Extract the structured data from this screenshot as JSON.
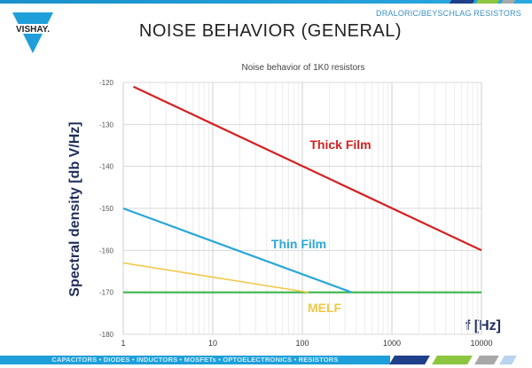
{
  "header": {
    "brand": "VISHAY.",
    "division": "DRALORIC/BEYSCHLAG RESISTORS",
    "title": "NOISE BEHAVIOR (GENERAL)"
  },
  "footer": {
    "tagline": "CAPACITORS • DIODES • INDUCTORS • MOSFETs • OPTOELECTRONICS • RESISTORS"
  },
  "colors": {
    "brand_blue": "#1f9fd9",
    "accent_navy": "#1e3f8a",
    "accent_green": "#8cc63f",
    "accent_gray": "#a8a8a8",
    "accent_light": "#b8d4ee"
  },
  "chart_data": {
    "type": "line",
    "title": "Noise behavior of 1K0 resistors",
    "xlabel": "f [Hz]",
    "ylabel": "Spectral density [db V/Hz]",
    "xscale": "log",
    "xlim": [
      1,
      10000
    ],
    "ylim": [
      -180,
      -120
    ],
    "xticks": [
      1,
      10,
      100,
      1000,
      10000
    ],
    "xtick_labels": [
      "1",
      "10",
      "100",
      "1000",
      "10000"
    ],
    "yticks": [
      -120,
      -130,
      -140,
      -150,
      -160,
      -170,
      -180
    ],
    "ytick_labels": [
      "-120",
      "-130",
      "-140",
      "-150",
      "-160",
      "-170",
      "-180"
    ],
    "grid": true,
    "series": [
      {
        "name": "Thick Film",
        "color": "#d42020",
        "x": [
          1.3,
          10000
        ],
        "y": [
          -121,
          -160
        ]
      },
      {
        "name": "Thin Film",
        "color": "#2aa7d8",
        "x": [
          1,
          355
        ],
        "y": [
          -150,
          -170
        ]
      },
      {
        "name": "MELF",
        "color": "#f2c744",
        "x": [
          1,
          117
        ],
        "y": [
          -163,
          -170
        ]
      },
      {
        "color": "#3cb54a",
        "x": [
          1,
          10000
        ],
        "y": [
          -170,
          -170
        ]
      }
    ]
  }
}
